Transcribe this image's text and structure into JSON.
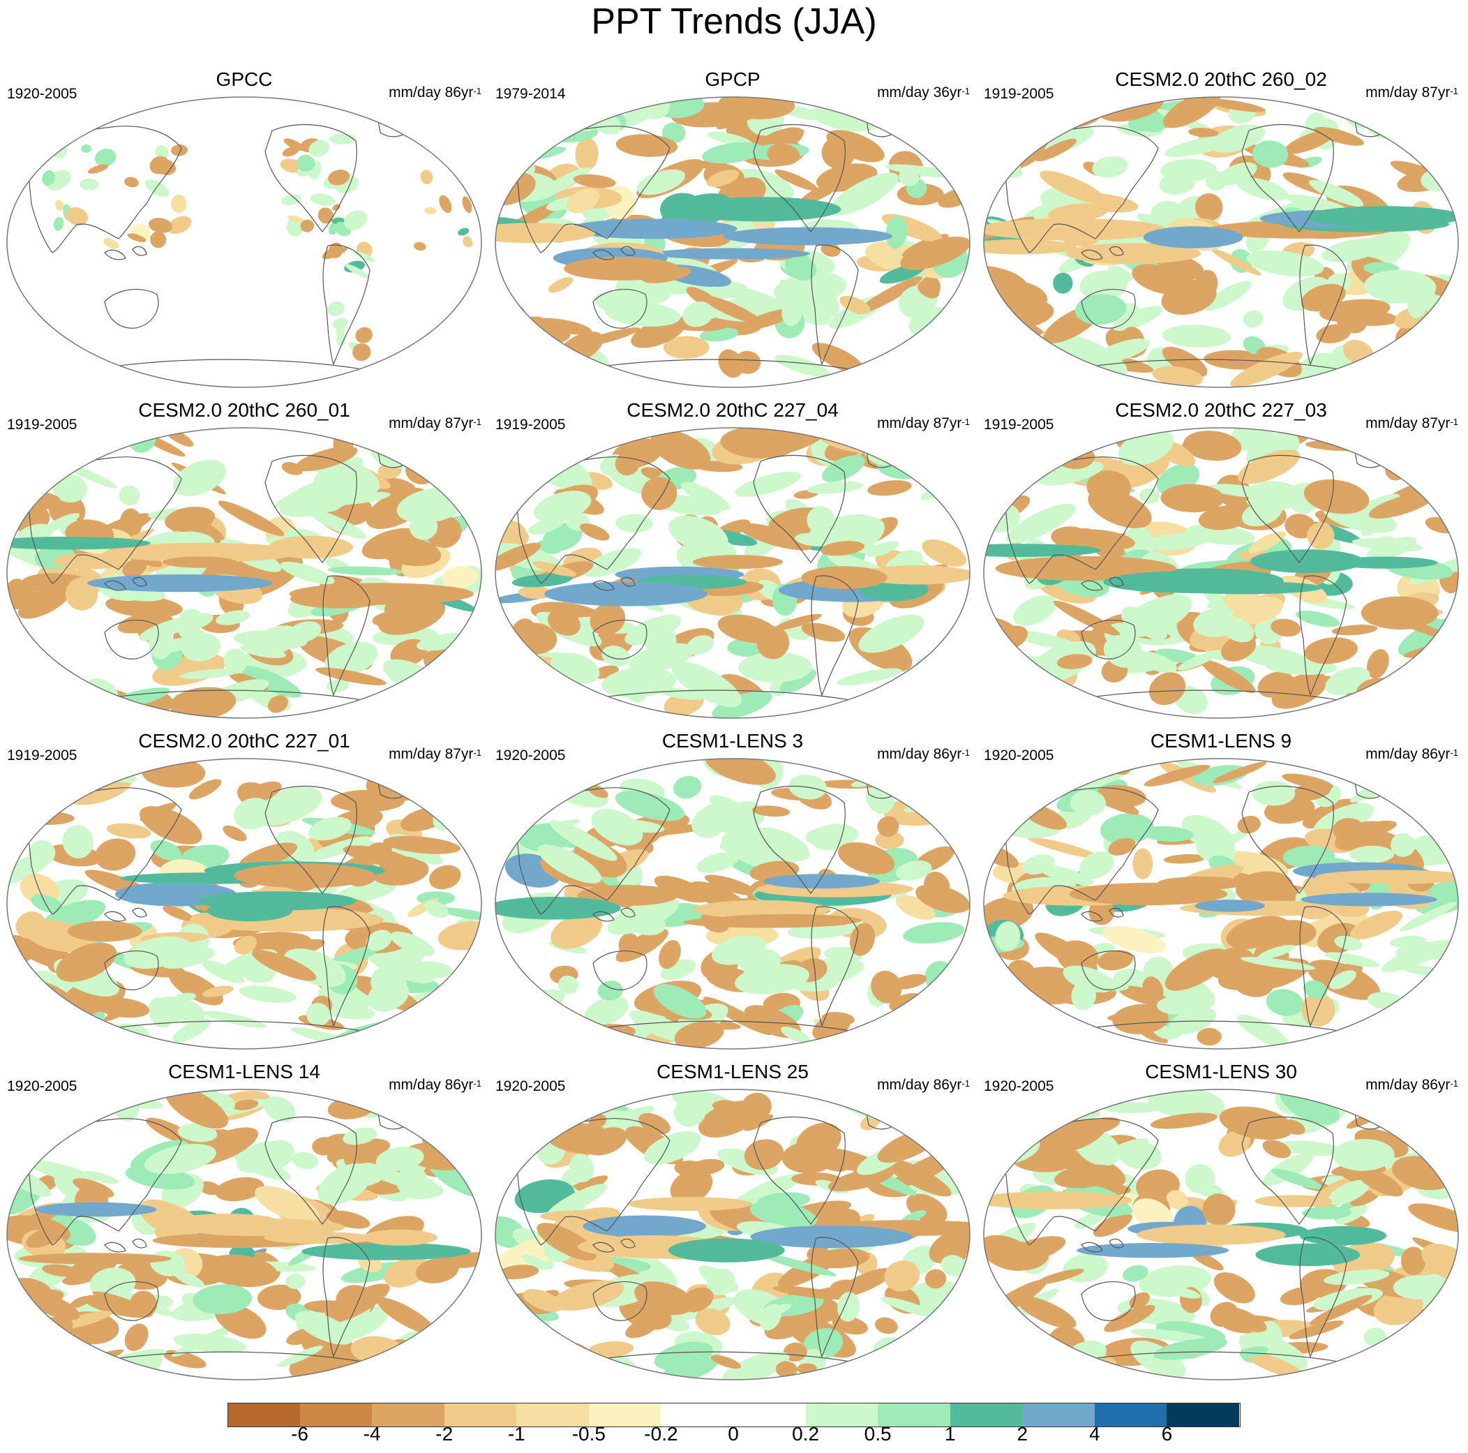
{
  "title": "PPT Trends (JJA)",
  "panels": [
    {
      "name": "GPCC",
      "period": "1920-2005",
      "units": "mm/day 86yr",
      "unit_exp": "-1"
    },
    {
      "name": "GPCP",
      "period": "1979-2014",
      "units": "mm/day 36yr",
      "unit_exp": "-1"
    },
    {
      "name": "CESM2.0 20thC 260_02",
      "period": "1919-2005",
      "units": "mm/day 87yr",
      "unit_exp": "-1"
    },
    {
      "name": "CESM2.0 20thC 260_01",
      "period": "1919-2005",
      "units": "mm/day 87yr",
      "unit_exp": "-1"
    },
    {
      "name": "CESM2.0 20thC 227_04",
      "period": "1919-2005",
      "units": "mm/day 87yr",
      "unit_exp": "-1"
    },
    {
      "name": "CESM2.0 20thC 227_03",
      "period": "1919-2005",
      "units": "mm/day 87yr",
      "unit_exp": "-1"
    },
    {
      "name": "CESM2.0 20thC 227_01",
      "period": "1919-2005",
      "units": "mm/day 87yr",
      "unit_exp": "-1"
    },
    {
      "name": "CESM1-LENS 3",
      "period": "1920-2005",
      "units": "mm/day 86yr",
      "unit_exp": "-1"
    },
    {
      "name": "CESM1-LENS 9",
      "period": "1920-2005",
      "units": "mm/day 86yr",
      "unit_exp": "-1"
    },
    {
      "name": "CESM1-LENS 14",
      "period": "1920-2005",
      "units": "mm/day 86yr",
      "unit_exp": "-1"
    },
    {
      "name": "CESM1-LENS 25",
      "period": "1920-2005",
      "units": "mm/day 86yr",
      "unit_exp": "-1"
    },
    {
      "name": "CESM1-LENS 30",
      "period": "1920-2005",
      "units": "mm/day 86yr",
      "unit_exp": "-1"
    }
  ],
  "colorbar": {
    "colors": [
      "#b5692a",
      "#cc8844",
      "#dda564",
      "#f1cb8a",
      "#f5e0a2",
      "#fdf3c0",
      "#ffffff",
      "#ffffff",
      "#ccf8cc",
      "#9debb6",
      "#52bb9c",
      "#72a8cb",
      "#1f6fad",
      "#003a5c"
    ],
    "labels": [
      "-6",
      "-4",
      "-2",
      "-1",
      "-0.5",
      "-0.2",
      "0",
      "0.2",
      "0.5",
      "1",
      "2",
      "4",
      "6"
    ]
  }
}
